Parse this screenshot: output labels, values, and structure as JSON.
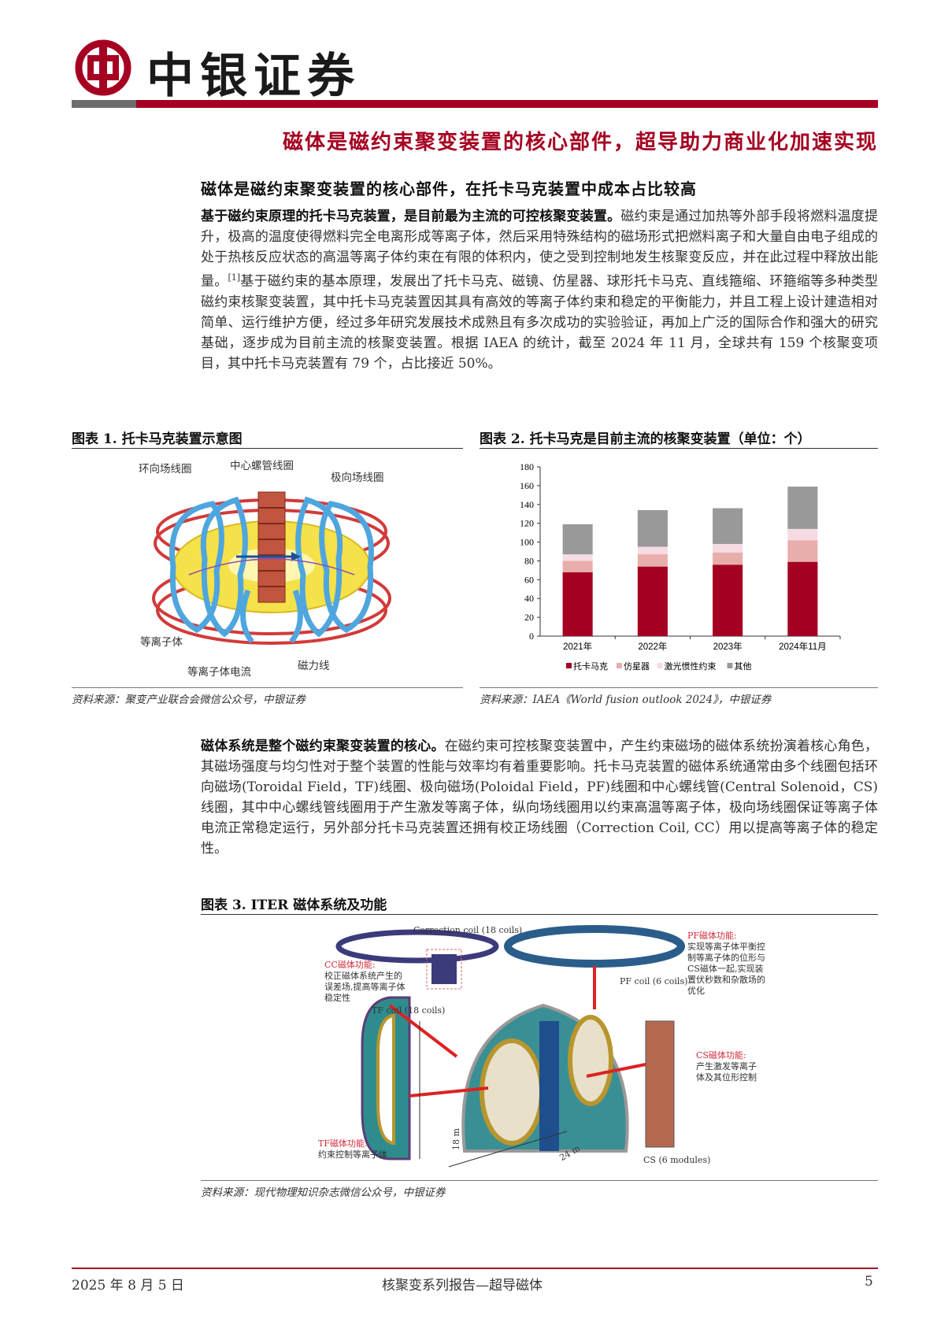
{
  "header": {
    "brand": "中银证券",
    "colors": {
      "brand_red": "#a50021",
      "gray": "#6d6d6d"
    }
  },
  "main_title": "磁体是磁约束聚变装置的核心部件，超导助力商业化加速实现",
  "section1": {
    "title": "磁体是磁约束聚变装置的核心部件，在托卡马克装置中成本占比较高",
    "lead_bold": "基于磁约束原理的托卡马克装置，是目前最为主流的可控核聚变装置。",
    "text_a": "磁约束是通过加热等外部手段将燃料温度提升，极高的温度使得燃料完全电离形成等离子体，然后采用特殊结构的磁场形式把燃料离子和大量自由电子组成的处于热核反应状态的高温等离子体约束在有限的体积内，使之受到控制地发生核聚变反应，并在此过程中释放出能量。",
    "ref": "[1]",
    "text_b": "基于磁约束的基本原理，发展出了托卡马克、磁镜、仿星器、球形托卡马克、直线箍缩、环箍缩等多种类型磁约束核聚变装置，其中托卡马克装置因其具有高效的等离子体约束和稳定的平衡能力，并且工程上设计建造相对简单、运行维护方便，经过多年研究发展技术成熟且有多次成功的实验验证，再加上广泛的国际合作和强大的研究基础，逐步成为目前主流的核聚变装置。根据 IAEA 的统计，截至 2024 年 11 月，全球共有 159 个核聚变项目，其中托卡马克装置有 79 个，占比接近 50%。"
  },
  "figure1": {
    "title": "图表 1. 托卡马克装置示意图",
    "labels": {
      "toroidal": "环向场线圈",
      "solenoid": "中心螺管线圈",
      "poloidal": "极向场线圈",
      "plasma": "等离子体",
      "current": "等离子体电流",
      "field_line": "磁力线"
    },
    "source": "资料来源：聚变产业联合会微信公众号，中银证券"
  },
  "figure2": {
    "title": "图表 2. 托卡马克是目前主流的核聚变装置（单位：个）",
    "source": "资料来源：IAEA《World fusion outlook 2024》，中银证券"
  },
  "chart_data": {
    "type": "bar",
    "stacked": true,
    "categories": [
      "2021年",
      "2022年",
      "2023年",
      "2024年11月"
    ],
    "series": [
      {
        "name": "托卡马克",
        "values": [
          68,
          74,
          76,
          79
        ],
        "color": "#a50021"
      },
      {
        "name": "仿星器",
        "values": [
          12,
          13,
          13,
          23
        ],
        "color": "#e8aeab"
      },
      {
        "name": "激光惯性约束",
        "values": [
          7,
          8,
          9,
          12
        ],
        "color": "#f6dce2"
      },
      {
        "name": "其他",
        "values": [
          32,
          39,
          38,
          45
        ],
        "color": "#999999"
      }
    ],
    "ylim": [
      0,
      180
    ],
    "yticks": [
      0,
      20,
      40,
      60,
      80,
      100,
      120,
      140,
      160,
      180
    ],
    "grid": false,
    "legend": "bottom"
  },
  "section2": {
    "lead_bold": "磁体系统是整个磁约束聚变装置的核心。",
    "text": "在磁约束可控核聚变装置中，产生约束磁场的磁体系统扮演着核心角色，其磁场强度与均匀性对于整个装置的性能与效率均有着重要影响。托卡马克装置的磁体系统通常由多个线圈包括环向磁场(Toroidal Field，TF)线圈、极向磁场(Poloidal Field，PF)线圈和中心螺线管(Central Solenoid，CS)线圈，其中中心螺线管线圈用于产生激发等离子体，纵向场线圈用以约束高温等离子体，极向场线圈保证等离子体电流正常稳定运行，另外部分托卡马克装置还拥有校正场线圈（Correction Coil, CC）用以提高等离子体的稳定性。"
  },
  "figure3": {
    "title": "图表 3. ITER 磁体系统及功能",
    "labels": {
      "cc_coil": "Correction coil (18 coils)",
      "cc_title": "CC磁体功能:",
      "cc_desc": "校正磁体系统产生的误差场,提高等离子体稳定性",
      "tf_coil": "TF coil (18 coils)",
      "pf_title": "PF磁体功能:",
      "pf_desc": "实现等离子体平衡控制等离子体的位形与CS磁体一起,实现装置伏秒数和杂散场的优化",
      "pf_coil": "PF coil (6 coils)",
      "cs_title": "CS磁体功能:",
      "cs_desc": "产生激发等离子体及其位形控制",
      "tf_title": "TF磁体功能:",
      "tf_desc": "约束控制等离子体",
      "height": "18 m",
      "width": "24 m",
      "cs_modules": "CS (6 modules)"
    },
    "source": "资料来源：现代物理知识杂志微信公众号，中银证券"
  },
  "footer": {
    "date": "2025 年 8 月 5 日",
    "report": "核聚变系列报告—超导磁体",
    "page": "5"
  }
}
